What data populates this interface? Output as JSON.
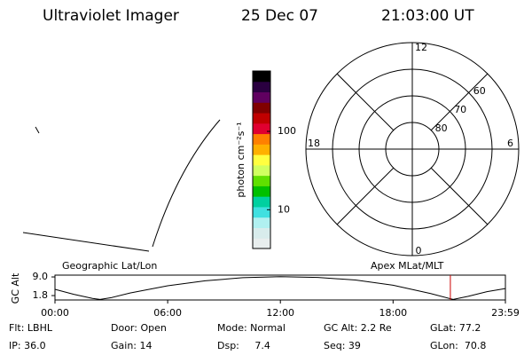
{
  "header": {
    "title": "Ultraviolet Imager",
    "date": "25 Dec 07",
    "time": "21:03:00 UT"
  },
  "colorbar": {
    "label": "photon cm⁻²s⁻¹",
    "log": true,
    "lim": [
      3.2,
      590
    ],
    "ticks": [
      10,
      100
    ],
    "colors": [
      "#e8eeee",
      "#d8ecec",
      "#b0f0f0",
      "#40e0e0",
      "#00d0a0",
      "#00c000",
      "#60e000",
      "#d0ff60",
      "#ffff40",
      "#ffb000",
      "#ff8000",
      "#e00030",
      "#c00000",
      "#800000",
      "#600060",
      "#2a0040",
      "#000000"
    ]
  },
  "polar": {
    "rlim": [
      90,
      50
    ],
    "rings": [
      80,
      70,
      60
    ],
    "hours": [
      "12",
      "18",
      "6",
      "0"
    ]
  },
  "map_label": "Geographic Lat/Lon",
  "apex_label": "Apex MLat/MLT",
  "chart_data": {
    "type": "line",
    "ylabel": "GC Alt",
    "x": [
      0,
      1,
      2,
      2.4,
      3,
      4,
      6,
      8,
      10,
      12,
      14,
      16,
      18,
      20,
      21.2,
      22,
      23,
      23.98
    ],
    "values": [
      4.2,
      2.3,
      0.7,
      0.3,
      1.0,
      2.8,
      5.6,
      7.5,
      8.7,
      9.1,
      8.8,
      7.8,
      5.8,
      2.6,
      0.3,
      1.5,
      3.3,
      4.5
    ],
    "color": "#000000",
    "marker": 21.05,
    "marker_color": "#cc0000",
    "xlim": [
      0,
      23.98
    ],
    "ylim": [
      0.1,
      9.7
    ],
    "xticks": [
      {
        "value": 0,
        "label": "00:00"
      },
      {
        "value": 6,
        "label": "06:00"
      },
      {
        "value": 12,
        "label": "12:00"
      },
      {
        "value": 18,
        "label": "18:00"
      },
      {
        "value": 23.98,
        "label": "23:59"
      }
    ],
    "yticks": [
      {
        "value": 9,
        "label": "9.0"
      },
      1.8
    ]
  },
  "footer": {
    "rows": [
      [
        "Flt: LBHL",
        "Door: Open",
        "Mode: Normal",
        "GC Alt: 2.2 Re",
        "GLat: 77.2"
      ],
      [
        "IP: 36.0",
        "Gain: 14",
        "Dsp:     7.4",
        "Seq: 39",
        "GLon:  70.8"
      ]
    ]
  }
}
